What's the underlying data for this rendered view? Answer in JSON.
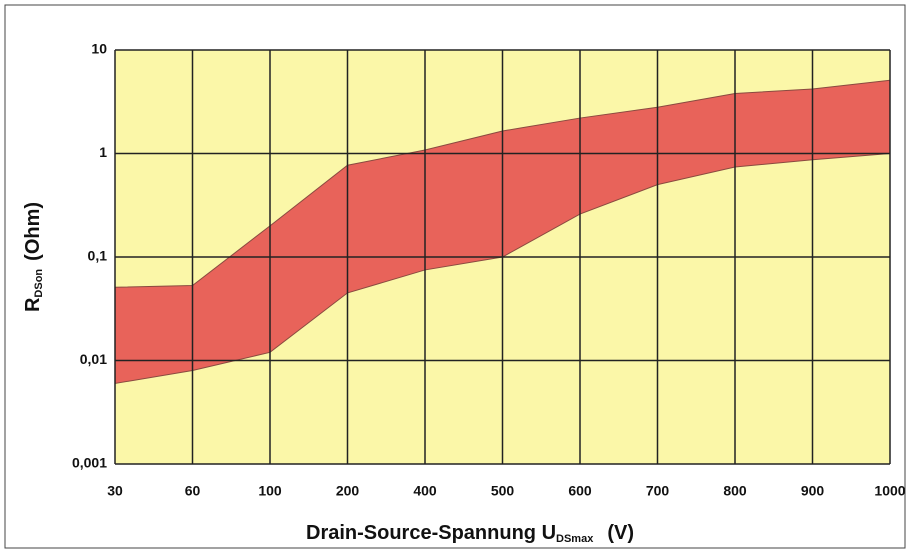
{
  "chart_data": {
    "type": "band",
    "categories": [
      "30",
      "60",
      "100",
      "200",
      "400",
      "500",
      "600",
      "700",
      "800",
      "900",
      "1000"
    ],
    "band": {
      "color": "#e8635a",
      "lower": [
        0.006,
        0.008,
        0.012,
        0.045,
        0.075,
        0.1,
        0.26,
        0.5,
        0.74,
        0.87,
        1.0
      ],
      "upper": [
        0.051,
        0.053,
        0.2,
        0.77,
        1.08,
        1.65,
        2.2,
        2.8,
        3.8,
        4.2,
        5.1
      ]
    },
    "y_label": {
      "main": "R",
      "sub": "DSon",
      "unit": "(Ohm)"
    },
    "x_label": {
      "main": "Drain-Source-Spannung U",
      "sub": "DSmax",
      "unit": "(V)"
    },
    "ylim": [
      0.001,
      10
    ],
    "log_y": true,
    "yticks": [
      {
        "value": 0.001,
        "label": "0,001"
      },
      {
        "value": 0.01,
        "label": "0,01"
      },
      {
        "value": 0.1,
        "label": "0,1"
      },
      1,
      10
    ],
    "grid": true,
    "background": "#fbf7a8"
  }
}
